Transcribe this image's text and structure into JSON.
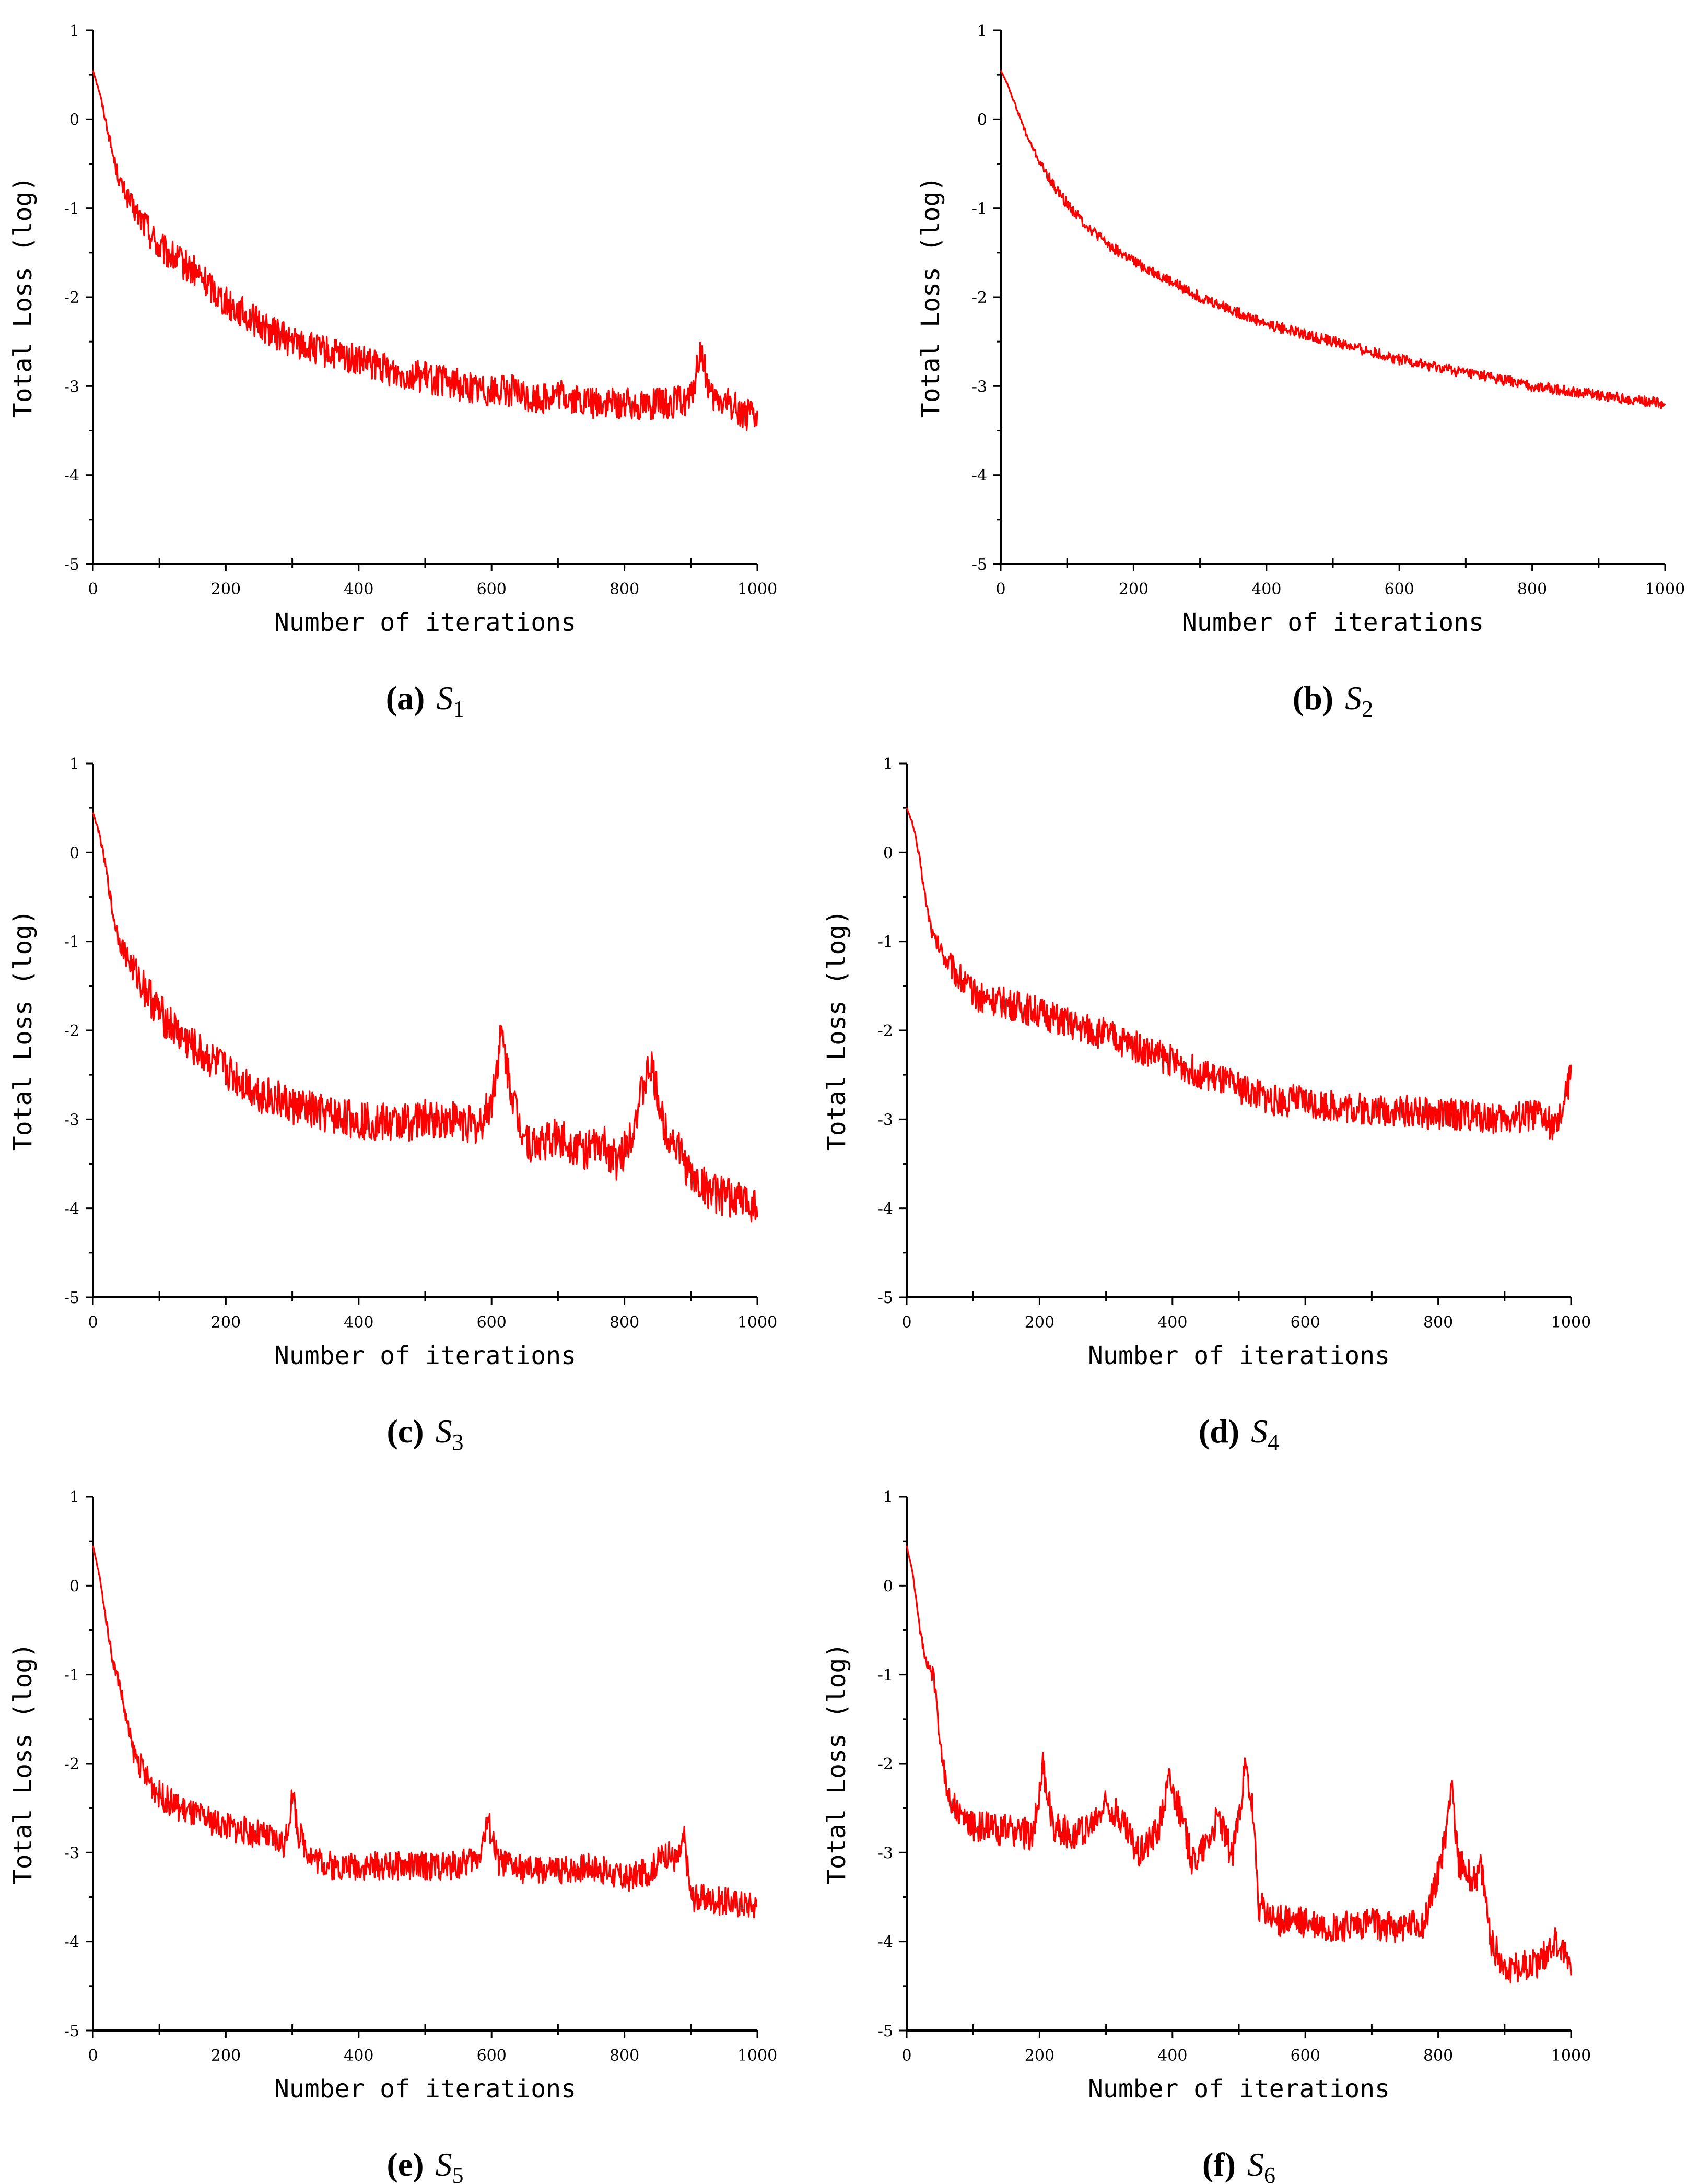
{
  "figure_title": "",
  "chart_data": [
    {
      "type": "line",
      "panel": "a",
      "caption_letter": "a",
      "caption_symbol": "S",
      "caption_subscript": "1",
      "title": "",
      "xlabel": "Number of iterations",
      "ylabel": "Total Loss (log)",
      "xlim": [
        0,
        1000
      ],
      "ylim": [
        -5,
        1
      ],
      "xticks": [
        "0",
        "200",
        "400",
        "600",
        "800",
        "1000"
      ],
      "yticks": [
        "1",
        "0",
        "-1",
        "-2",
        "-3",
        "-4",
        "-5"
      ],
      "series": [
        {
          "name": "Total Loss",
          "color": "#ff0000",
          "x": [
            0,
            10,
            20,
            30,
            40,
            50,
            60,
            80,
            100,
            120,
            150,
            180,
            200,
            230,
            260,
            300,
            340,
            380,
            400,
            430,
            460,
            500,
            530,
            560,
            600,
            630,
            660,
            700,
            740,
            780,
            820,
            860,
            900,
            915,
            930,
            960,
            1000
          ],
          "values": [
            0.55,
            0.3,
            -0.05,
            -0.4,
            -0.7,
            -0.85,
            -1.0,
            -1.2,
            -1.45,
            -1.55,
            -1.7,
            -1.9,
            -2.05,
            -2.2,
            -2.35,
            -2.5,
            -2.6,
            -2.68,
            -2.72,
            -2.78,
            -2.85,
            -2.9,
            -2.95,
            -3.0,
            -3.05,
            -3.05,
            -3.15,
            -3.1,
            -3.18,
            -3.2,
            -3.2,
            -3.2,
            -3.15,
            -2.6,
            -3.15,
            -3.2,
            -3.4
          ]
        }
      ]
    },
    {
      "type": "line",
      "panel": "b",
      "caption_letter": "b",
      "caption_symbol": "S",
      "caption_subscript": "2",
      "title": "",
      "xlabel": "Number of iterations",
      "ylabel": "Total Loss (log)",
      "xlim": [
        0,
        1000
      ],
      "ylim": [
        -5,
        1
      ],
      "xticks": [
        "0",
        "200",
        "400",
        "600",
        "800",
        "1000"
      ],
      "yticks": [
        "1",
        "0",
        "-1",
        "-2",
        "-3",
        "-4",
        "-5"
      ],
      "series": [
        {
          "name": "Total Loss",
          "color": "#ff0000",
          "x": [
            0,
            10,
            20,
            40,
            60,
            80,
            100,
            130,
            160,
            200,
            250,
            300,
            350,
            400,
            450,
            500,
            550,
            600,
            650,
            700,
            750,
            800,
            850,
            900,
            950,
            1000
          ],
          "values": [
            0.55,
            0.4,
            0.2,
            -0.2,
            -0.5,
            -0.75,
            -0.95,
            -1.2,
            -1.4,
            -1.6,
            -1.8,
            -2.0,
            -2.15,
            -2.3,
            -2.4,
            -2.5,
            -2.6,
            -2.7,
            -2.78,
            -2.85,
            -2.92,
            -3.0,
            -3.05,
            -3.1,
            -3.15,
            -3.2
          ]
        }
      ]
    },
    {
      "type": "line",
      "panel": "c",
      "caption_letter": "c",
      "caption_symbol": "S",
      "caption_subscript": "3",
      "title": "",
      "xlabel": "Number of iterations",
      "ylabel": "Total Loss (log)",
      "xlim": [
        0,
        1000
      ],
      "ylim": [
        -5,
        1
      ],
      "xticks": [
        "0",
        "200",
        "400",
        "600",
        "800",
        "1000"
      ],
      "yticks": [
        "1",
        "0",
        "-1",
        "-2",
        "-3",
        "-4",
        "-5"
      ],
      "series": [
        {
          "name": "Total Loss",
          "color": "#ff0000",
          "x": [
            0,
            10,
            20,
            30,
            40,
            60,
            80,
            100,
            130,
            160,
            200,
            250,
            300,
            350,
            400,
            450,
            500,
            550,
            580,
            600,
            615,
            625,
            640,
            660,
            700,
            740,
            770,
            790,
            810,
            830,
            840,
            860,
            880,
            900,
            940,
            1000
          ],
          "values": [
            0.45,
            0.2,
            -0.2,
            -0.7,
            -1.0,
            -1.3,
            -1.55,
            -1.8,
            -2.05,
            -2.25,
            -2.45,
            -2.7,
            -2.85,
            -2.95,
            -3.0,
            -3.05,
            -3.0,
            -3.0,
            -3.1,
            -2.8,
            -2.05,
            -2.5,
            -3.0,
            -3.3,
            -3.2,
            -3.35,
            -3.3,
            -3.5,
            -3.15,
            -2.6,
            -2.4,
            -3.1,
            -3.3,
            -3.65,
            -3.85,
            -3.95
          ]
        }
      ]
    },
    {
      "type": "line",
      "panel": "d",
      "caption_letter": "d",
      "caption_symbol": "S",
      "caption_subscript": "4",
      "title": "",
      "xlabel": "Number of iterations",
      "ylabel": "Total Loss (log)",
      "xlim": [
        0,
        1000
      ],
      "ylim": [
        -5,
        1
      ],
      "xticks": [
        "0",
        "200",
        "400",
        "600",
        "800",
        "1000"
      ],
      "yticks": [
        "1",
        "0",
        "-1",
        "-2",
        "-3",
        "-4",
        "-5"
      ],
      "series": [
        {
          "name": "Total Loss",
          "color": "#ff0000",
          "x": [
            0,
            10,
            20,
            30,
            40,
            60,
            80,
            100,
            150,
            200,
            250,
            300,
            350,
            400,
            450,
            500,
            550,
            600,
            650,
            700,
            750,
            800,
            850,
            900,
            950,
            980,
            1000
          ],
          "values": [
            0.5,
            0.3,
            -0.1,
            -0.6,
            -0.95,
            -1.2,
            -1.4,
            -1.6,
            -1.7,
            -1.8,
            -1.95,
            -2.05,
            -2.2,
            -2.35,
            -2.5,
            -2.65,
            -2.78,
            -2.8,
            -2.85,
            -2.9,
            -2.9,
            -2.95,
            -2.95,
            -3.0,
            -2.95,
            -3.1,
            -2.5
          ]
        }
      ]
    },
    {
      "type": "line",
      "panel": "e",
      "caption_letter": "e",
      "caption_symbol": "S",
      "caption_subscript": "5",
      "title": "",
      "xlabel": "Number of iterations",
      "ylabel": "Total Loss (log)",
      "xlim": [
        0,
        1000
      ],
      "ylim": [
        -5,
        1
      ],
      "xticks": [
        "0",
        "200",
        "400",
        "600",
        "800",
        "1000"
      ],
      "yticks": [
        "1",
        "0",
        "-1",
        "-2",
        "-3",
        "-4",
        "-5"
      ],
      "series": [
        {
          "name": "Total Loss",
          "color": "#ff0000",
          "x": [
            0,
            10,
            20,
            30,
            40,
            50,
            60,
            80,
            100,
            130,
            160,
            200,
            250,
            290,
            300,
            310,
            330,
            360,
            400,
            450,
            500,
            550,
            580,
            595,
            610,
            650,
            700,
            750,
            800,
            840,
            860,
            880,
            890,
            900,
            950,
            1000
          ],
          "values": [
            0.45,
            0.1,
            -0.4,
            -0.85,
            -1.1,
            -1.5,
            -1.85,
            -2.15,
            -2.35,
            -2.5,
            -2.6,
            -2.7,
            -2.8,
            -2.9,
            -2.35,
            -2.8,
            -3.05,
            -3.15,
            -3.15,
            -3.15,
            -3.15,
            -3.15,
            -3.05,
            -2.65,
            -3.1,
            -3.2,
            -3.2,
            -3.15,
            -3.3,
            -3.2,
            -3.0,
            -3.1,
            -2.85,
            -3.5,
            -3.55,
            -3.6
          ]
        }
      ]
    },
    {
      "type": "line",
      "panel": "f",
      "caption_letter": "f",
      "caption_symbol": "S",
      "caption_subscript": "6",
      "title": "",
      "xlabel": "Number of iterations",
      "ylabel": "Total Loss (log)",
      "xlim": [
        0,
        1000
      ],
      "ylim": [
        -5,
        1
      ],
      "xticks": [
        "0",
        "200",
        "400",
        "600",
        "800",
        "1000"
      ],
      "yticks": [
        "1",
        "0",
        "-1",
        "-2",
        "-3",
        "-4",
        "-5"
      ],
      "series": [
        {
          "name": "Total Loss",
          "color": "#ff0000",
          "x": [
            0,
            10,
            20,
            30,
            40,
            50,
            60,
            80,
            100,
            150,
            190,
            205,
            220,
            250,
            280,
            300,
            320,
            350,
            380,
            395,
            410,
            430,
            450,
            470,
            490,
            510,
            520,
            530,
            550,
            600,
            650,
            700,
            750,
            780,
            800,
            810,
            820,
            830,
            850,
            865,
            880,
            900,
            950,
            975,
            1000
          ],
          "values": [
            0.45,
            0.1,
            -0.5,
            -0.9,
            -1.0,
            -1.7,
            -2.3,
            -2.6,
            -2.7,
            -2.75,
            -2.8,
            -2.05,
            -2.7,
            -2.8,
            -2.7,
            -2.45,
            -2.6,
            -3.0,
            -2.7,
            -2.15,
            -2.5,
            -3.1,
            -2.9,
            -2.6,
            -3.05,
            -2.05,
            -2.5,
            -3.6,
            -3.75,
            -3.8,
            -3.85,
            -3.8,
            -3.85,
            -3.8,
            -3.2,
            -2.9,
            -2.15,
            -3.1,
            -3.3,
            -3.2,
            -4.0,
            -4.3,
            -4.25,
            -4.0,
            -4.25
          ]
        }
      ]
    }
  ]
}
